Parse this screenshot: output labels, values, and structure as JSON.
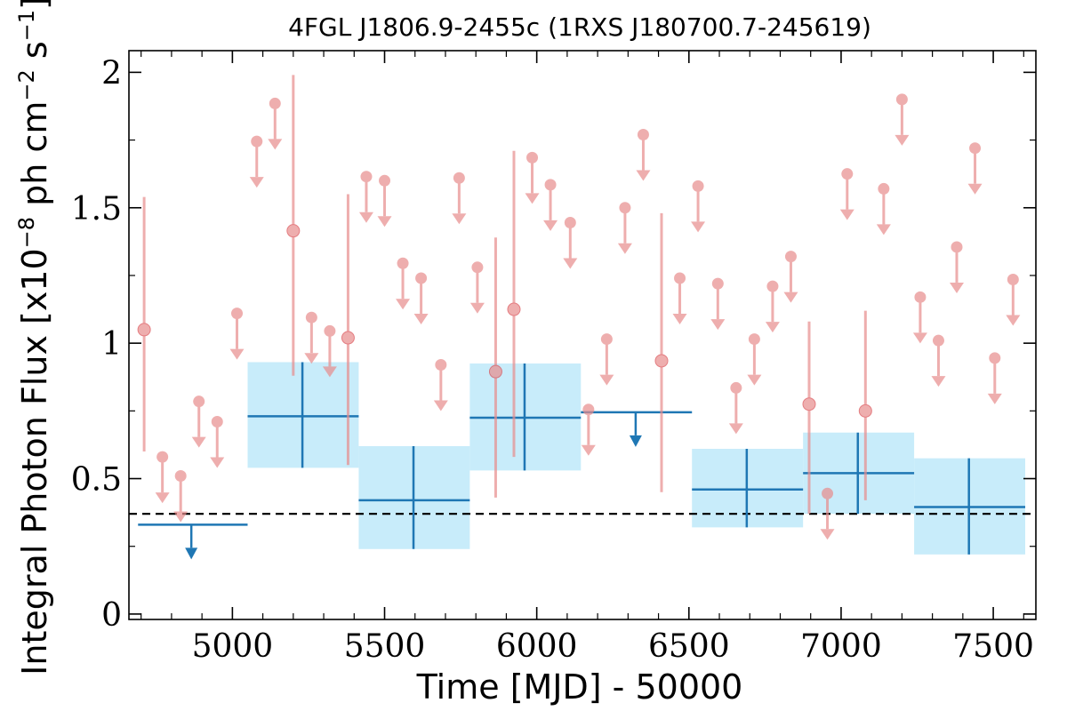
{
  "chart_data": {
    "type": "scatter",
    "title": "4FGL J1806.9-2455c (1RXS J180700.7-245619)",
    "xlabel": "Time [MJD] - 50000",
    "ylabel_prefix": "Integral Photon Flux [x10",
    "ylabel_exp1": "−8",
    "ylabel_mid": " ph cm",
    "ylabel_exp2": "−2",
    "ylabel_mid2": " s",
    "ylabel_exp3": "−1",
    "ylabel_suffix": "]",
    "xlim": [
      4660,
      7640
    ],
    "ylim": [
      -0.02,
      2.08
    ],
    "x_ticks": [
      {
        "v": 5000,
        "label": "5000"
      },
      {
        "v": 5500,
        "label": "5500"
      },
      {
        "v": 6000,
        "label": "6000"
      },
      {
        "v": 6500,
        "label": "6500"
      },
      {
        "v": 7000,
        "label": "7000"
      },
      {
        "v": 7500,
        "label": "7500"
      }
    ],
    "y_ticks": [
      {
        "v": 0,
        "label": "0"
      },
      {
        "v": 0.5,
        "label": "0.5"
      },
      {
        "v": 1,
        "label": "1"
      },
      {
        "v": 1.5,
        "label": "1.5"
      },
      {
        "v": 2,
        "label": "2"
      }
    ],
    "reference_level": 0.37,
    "colors": {
      "short_bins": "#e88c8c",
      "long_bins": "#1f77b4",
      "long_bin_fill": "#c8ecfa",
      "reference_line": "#000000"
    },
    "long_bins": [
      {
        "x": 4865,
        "xmin": 4690,
        "xmax": 5050,
        "ul": 0.33
      },
      {
        "x": 5230,
        "xmin": 5050,
        "xmax": 5415,
        "y": 0.73,
        "ylo": 0.54,
        "yhi": 0.93
      },
      {
        "x": 5595,
        "xmin": 5415,
        "xmax": 5780,
        "y": 0.42,
        "ylo": 0.24,
        "yhi": 0.62
      },
      {
        "x": 5960,
        "xmin": 5780,
        "xmax": 6145,
        "y": 0.725,
        "ylo": 0.53,
        "yhi": 0.925
      },
      {
        "x": 6325,
        "xmin": 6145,
        "xmax": 6510,
        "ul": 0.745
      },
      {
        "x": 6690,
        "xmin": 6510,
        "xmax": 6875,
        "y": 0.46,
        "ylo": 0.32,
        "yhi": 0.61
      },
      {
        "x": 7055,
        "xmin": 6875,
        "xmax": 7240,
        "y": 0.52,
        "ylo": 0.37,
        "yhi": 0.67
      },
      {
        "x": 7420,
        "xmin": 7240,
        "xmax": 7605,
        "y": 0.395,
        "ylo": 0.22,
        "yhi": 0.575
      }
    ],
    "short_bins": [
      {
        "x": 4710,
        "y": 1.05,
        "ylo": 0.6,
        "yhi": 1.54
      },
      {
        "x": 4770,
        "ul": 0.58
      },
      {
        "x": 4830,
        "ul": 0.51
      },
      {
        "x": 4890,
        "ul": 0.785
      },
      {
        "x": 4950,
        "ul": 0.71
      },
      {
        "x": 5015,
        "ul": 1.11
      },
      {
        "x": 5080,
        "ul": 1.745
      },
      {
        "x": 5140,
        "ul": 1.885
      },
      {
        "x": 5200,
        "y": 1.415,
        "ylo": 0.88,
        "yhi": 1.99
      },
      {
        "x": 5260,
        "ul": 1.095
      },
      {
        "x": 5320,
        "ul": 1.045
      },
      {
        "x": 5380,
        "y": 1.02,
        "ylo": 0.55,
        "yhi": 1.55
      },
      {
        "x": 5440,
        "ul": 1.615
      },
      {
        "x": 5500,
        "ul": 1.6
      },
      {
        "x": 5560,
        "ul": 1.295
      },
      {
        "x": 5620,
        "ul": 1.24
      },
      {
        "x": 5685,
        "ul": 0.92
      },
      {
        "x": 5745,
        "ul": 1.61
      },
      {
        "x": 5805,
        "ul": 1.28
      },
      {
        "x": 5865,
        "y": 0.895,
        "ylo": 0.43,
        "yhi": 1.39
      },
      {
        "x": 5925,
        "y": 1.125,
        "ylo": 0.58,
        "yhi": 1.71
      },
      {
        "x": 5985,
        "ul": 1.685
      },
      {
        "x": 6045,
        "ul": 1.585
      },
      {
        "x": 6110,
        "ul": 1.445
      },
      {
        "x": 6170,
        "ul": 0.755
      },
      {
        "x": 6230,
        "ul": 1.015
      },
      {
        "x": 6290,
        "ul": 1.5
      },
      {
        "x": 6350,
        "ul": 1.77
      },
      {
        "x": 6410,
        "y": 0.935,
        "ylo": 0.45,
        "yhi": 1.48
      },
      {
        "x": 6470,
        "ul": 1.24
      },
      {
        "x": 6530,
        "ul": 1.58
      },
      {
        "x": 6595,
        "ul": 1.22
      },
      {
        "x": 6655,
        "ul": 0.835
      },
      {
        "x": 6715,
        "ul": 1.015
      },
      {
        "x": 6775,
        "ul": 1.21
      },
      {
        "x": 6835,
        "ul": 1.32
      },
      {
        "x": 6895,
        "y": 0.775,
        "ylo": 0.37,
        "yhi": 1.08
      },
      {
        "x": 6955,
        "ul": 0.445
      },
      {
        "x": 7020,
        "ul": 1.625
      },
      {
        "x": 7080,
        "y": 0.75,
        "ylo": 0.42,
        "yhi": 1.12
      },
      {
        "x": 7140,
        "ul": 1.57
      },
      {
        "x": 7200,
        "ul": 1.9
      },
      {
        "x": 7260,
        "ul": 1.17
      },
      {
        "x": 7320,
        "ul": 1.01
      },
      {
        "x": 7380,
        "ul": 1.355
      },
      {
        "x": 7440,
        "ul": 1.72
      },
      {
        "x": 7505,
        "ul": 0.945
      },
      {
        "x": 7565,
        "ul": 1.235
      }
    ]
  }
}
